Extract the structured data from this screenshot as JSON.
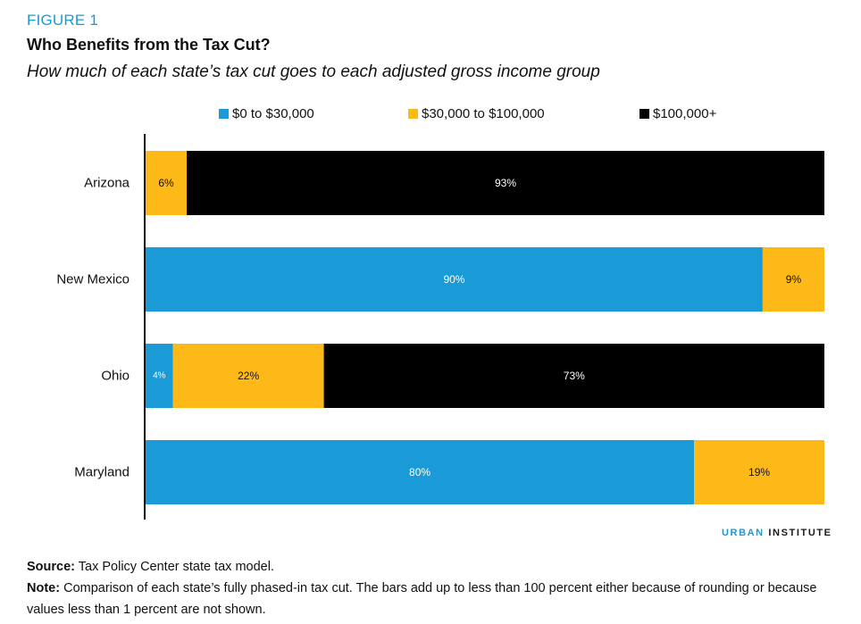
{
  "figure_label": "FIGURE 1",
  "colors": {
    "figure_label": "#1a9ad6",
    "brand_accent": "#1a9ad6",
    "axis": "#111111"
  },
  "brand": {
    "part1": "URBAN",
    "part2": " INSTITUTE"
  },
  "notes": {
    "source_label": "Source:",
    "source_text": " Tax Policy Center state tax model.",
    "note_label": "Note:",
    "note_text": " Comparison of each state’s fully phased-in tax cut. The bars add up to less than 100 percent either because of rounding or because values less than 1 percent are not shown."
  },
  "chart_data": {
    "type": "bar",
    "orientation": "horizontal",
    "stacked": true,
    "title": "Who Benefits from the Tax Cut?",
    "subtitle": "How much of each state’s tax cut goes to each adjusted gross income group",
    "xlabel": "",
    "ylabel": "",
    "xlim": [
      0,
      100
    ],
    "grid": false,
    "legend_position": "top",
    "categories": [
      "Arizona",
      "New Mexico",
      "Ohio",
      "Maryland"
    ],
    "series": [
      {
        "name": "$0 to $30,000",
        "color": "#1a9ad6",
        "label_color": "#ffffff",
        "values": [
          0,
          90,
          4,
          80
        ],
        "labels": [
          "",
          "90%",
          "4%",
          "80%"
        ]
      },
      {
        "name": "$30,000 to $100,000",
        "color": "#fcb918",
        "label_color": "#111111",
        "values": [
          6,
          9,
          22,
          19
        ],
        "labels": [
          "6%",
          "9%",
          "22%",
          "19%"
        ]
      },
      {
        "name": "$100,000+",
        "color": "#000000",
        "label_color": "#ffffff",
        "values": [
          93,
          0,
          73,
          0
        ],
        "labels": [
          "93%",
          "",
          "73%",
          ""
        ]
      }
    ]
  }
}
